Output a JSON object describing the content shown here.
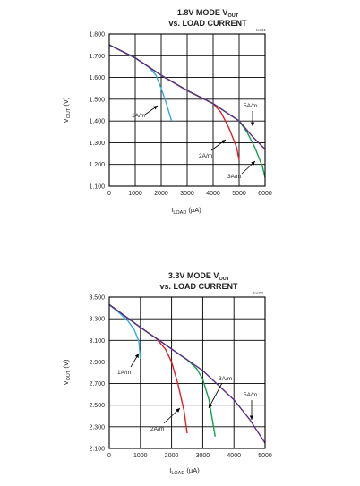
{
  "chart_data": [
    {
      "type": "line",
      "title_line1": "1.8V MODE V",
      "title_line1_sub": "OUT",
      "title_line2": "vs. LOAD CURRENT",
      "code": "toc01",
      "xlabel": "I",
      "xlabel_sub": "LOAD",
      "xlabel_unit": " (µA)",
      "ylabel": "V",
      "ylabel_sub": "OUT",
      "ylabel_unit": " (V)",
      "xlim": [
        0,
        6000
      ],
      "ylim": [
        1.1,
        1.8
      ],
      "xticks": [
        "0",
        "1000",
        "2000",
        "3000",
        "4000",
        "5000",
        "6000"
      ],
      "yticks": [
        "1.100",
        "1.200",
        "1.300",
        "1.400",
        "1.500",
        "1.600",
        "1.700",
        "1.800"
      ],
      "grid": true,
      "series": [
        {
          "name": "1A/m",
          "color": "#33aadd",
          "x": [
            0,
            500,
            1000,
            1500,
            1800,
            2000,
            2200,
            2400
          ],
          "y": [
            1.75,
            1.72,
            1.69,
            1.65,
            1.61,
            1.55,
            1.48,
            1.4
          ]
        },
        {
          "name": "2A/m",
          "color": "#e41e26",
          "x": [
            0,
            1000,
            2000,
            3000,
            3500,
            4000,
            4300,
            4600,
            4900,
            5000
          ],
          "y": [
            1.75,
            1.69,
            1.61,
            1.54,
            1.51,
            1.48,
            1.44,
            1.37,
            1.28,
            1.22
          ]
        },
        {
          "name": "3A/m",
          "color": "#12a04a",
          "x": [
            0,
            1000,
            2000,
            3000,
            4000,
            4500,
            5000,
            5300,
            5600,
            5900,
            6000
          ],
          "y": [
            1.75,
            1.69,
            1.61,
            1.54,
            1.48,
            1.44,
            1.4,
            1.35,
            1.28,
            1.19,
            1.14
          ]
        },
        {
          "name": "5A/m",
          "color": "#5b2d86",
          "x": [
            0,
            1000,
            2000,
            3000,
            4000,
            5000,
            5500,
            6000
          ],
          "y": [
            1.75,
            1.69,
            1.61,
            1.54,
            1.48,
            1.4,
            1.33,
            1.27
          ]
        }
      ],
      "annotations": [
        {
          "text": "1A/m",
          "series": "1A/m"
        },
        {
          "text": "2A/m",
          "series": "2A/m"
        },
        {
          "text": "3A/m",
          "series": "3A/m"
        },
        {
          "text": "5A/m",
          "series": "5A/m"
        }
      ]
    },
    {
      "type": "line",
      "title_line1": "3.3V MODE V",
      "title_line1_sub": "OUT",
      "title_line2": "vs. LOAD CURRENT",
      "code": "toc02",
      "xlabel": "I",
      "xlabel_sub": "LOAD",
      "xlabel_unit": " (µA)",
      "ylabel": "V",
      "ylabel_sub": "OUT",
      "ylabel_unit": " (V)",
      "xlim": [
        0,
        5000
      ],
      "ylim": [
        2.1,
        3.5
      ],
      "xticks": [
        "0",
        "1000",
        "2000",
        "3000",
        "4000",
        "5000"
      ],
      "yticks": [
        "2.100",
        "2.300",
        "2.500",
        "2.700",
        "2.900",
        "3.100",
        "3.300",
        "3.500"
      ],
      "grid": true,
      "series": [
        {
          "name": "1A/m",
          "color": "#33aadd",
          "x": [
            0,
            300,
            600,
            800,
            950,
            1000
          ],
          "y": [
            3.43,
            3.36,
            3.28,
            3.2,
            3.09,
            2.93
          ]
        },
        {
          "name": "2A/m",
          "color": "#e41e26",
          "x": [
            0,
            1000,
            1500,
            1800,
            2000,
            2200,
            2400,
            2500
          ],
          "y": [
            3.43,
            3.22,
            3.12,
            3.02,
            2.9,
            2.7,
            2.45,
            2.24
          ]
        },
        {
          "name": "3A/m",
          "color": "#12a04a",
          "x": [
            0,
            1000,
            1500,
            2000,
            2500,
            2800,
            3000,
            3200,
            3400
          ],
          "y": [
            3.43,
            3.22,
            3.12,
            3.02,
            2.92,
            2.84,
            2.74,
            2.55,
            2.21
          ]
        },
        {
          "name": "5A/m",
          "color": "#5b2d86",
          "x": [
            0,
            1000,
            2000,
            3000,
            4000,
            4500,
            5000
          ],
          "y": [
            3.43,
            3.22,
            3.02,
            2.82,
            2.55,
            2.37,
            2.15
          ]
        }
      ],
      "annotations": [
        {
          "text": "1A/m",
          "series": "1A/m"
        },
        {
          "text": "2A/m",
          "series": "2A/m"
        },
        {
          "text": "3A/m",
          "series": "3A/m"
        },
        {
          "text": "5A/m",
          "series": "5A/m"
        }
      ]
    }
  ]
}
